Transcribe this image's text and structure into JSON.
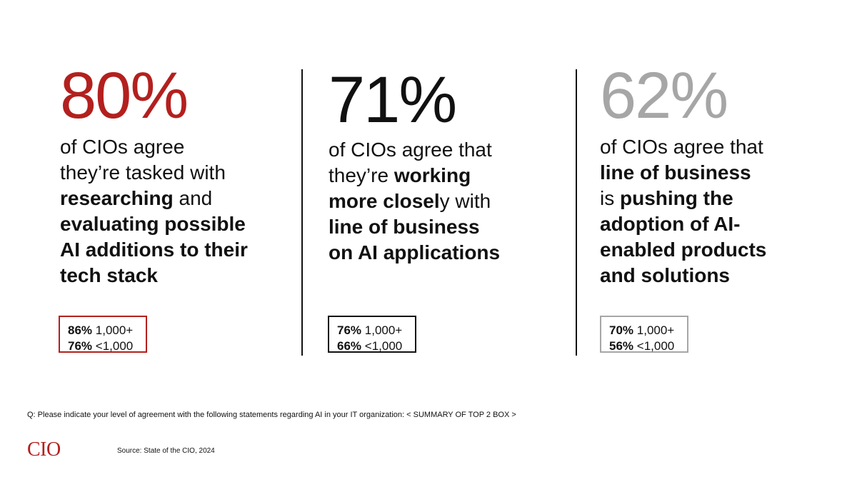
{
  "colors": {
    "red": "#b3201e",
    "black": "#111111",
    "gray": "#a6a6a6"
  },
  "stats": [
    {
      "percent": "80%",
      "lines": [
        [
          {
            "t": "of CIOs agree",
            "b": false
          }
        ],
        [
          {
            "t": "they’re tasked with",
            "b": false
          }
        ],
        [
          {
            "t": "researching",
            "b": true
          },
          {
            "t": " and",
            "b": false
          }
        ],
        [
          {
            "t": "evaluating possible",
            "b": true
          }
        ],
        [
          {
            "t": "AI additions to their",
            "b": true
          }
        ],
        [
          {
            "t": "tech stack",
            "b": true
          }
        ]
      ],
      "box": {
        "row1_pct": "86%",
        "row1_label": "1,000+",
        "row2_pct": "76%",
        "row2_label": "<1,000"
      }
    },
    {
      "percent": "71%",
      "lines": [
        [
          {
            "t": "of CIOs agree that",
            "b": false
          }
        ],
        [
          {
            "t": "they’re ",
            "b": false
          },
          {
            "t": "working",
            "b": true
          }
        ],
        [
          {
            "t": "more closel",
            "b": true
          },
          {
            "t": "y with",
            "b": false
          }
        ],
        [
          {
            "t": "line of business",
            "b": true
          }
        ],
        [
          {
            "t": "on AI applications",
            "b": true
          }
        ]
      ],
      "box": {
        "row1_pct": "76%",
        "row1_label": "1,000+",
        "row2_pct": "66%",
        "row2_label": "<1,000"
      }
    },
    {
      "percent": "62%",
      "lines": [
        [
          {
            "t": "of CIOs agree that",
            "b": false
          }
        ],
        [
          {
            "t": "line of business",
            "b": true
          }
        ],
        [
          {
            "t": "is ",
            "b": false
          },
          {
            "t": "pushing the",
            "b": true
          }
        ],
        [
          {
            "t": "adoption of AI-",
            "b": true
          }
        ],
        [
          {
            "t": "enabled products",
            "b": true
          }
        ],
        [
          {
            "t": "and solutions",
            "b": true
          }
        ]
      ],
      "box": {
        "row1_pct": "70%",
        "row1_label": "1,000+",
        "row2_pct": "56%",
        "row2_label": "<1,000"
      }
    }
  ],
  "footer": {
    "question": "Q: Please indicate your level of agreement with the following statements regarding AI in your IT organization: < SUMMARY OF TOP 2 BOX >",
    "logo": "CIO",
    "source": "Source: State of the CIO, 2024"
  }
}
